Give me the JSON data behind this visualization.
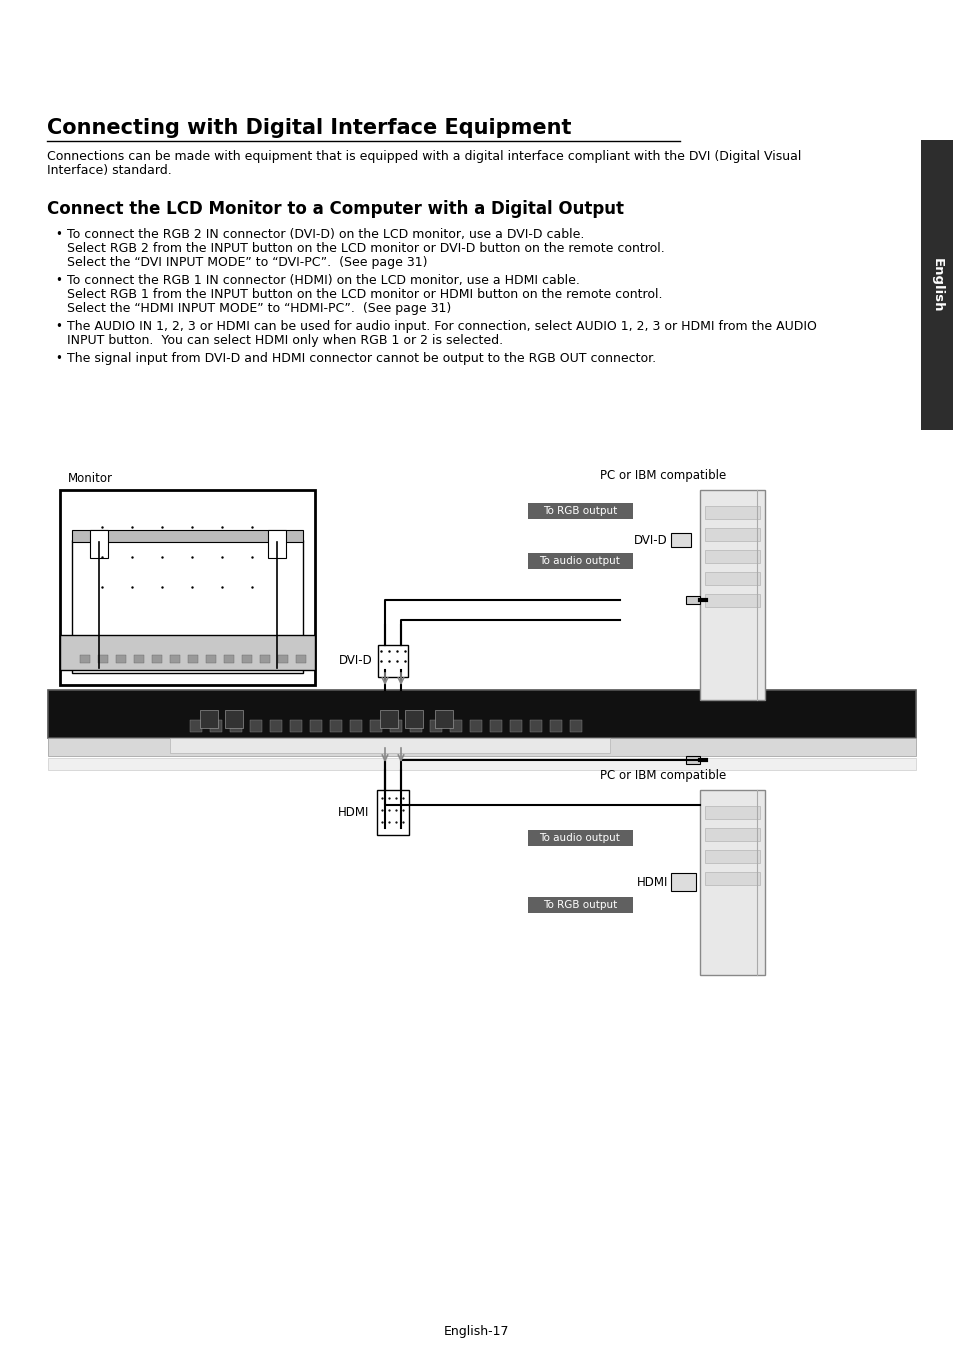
{
  "bg_color": "#ffffff",
  "title": "Connecting with Digital Interface Equipment",
  "subtitle_line1": "Connections can be made with equipment that is equipped with a digital interface compliant with the DVI (Digital Visual",
  "subtitle_line2": "Interface) standard.",
  "section_title": "Connect the LCD Monitor to a Computer with a Digital Output",
  "b1_l1": "To connect the RGB 2 IN connector (DVI-D) on the LCD monitor, use a DVI-D cable.",
  "b1_l2": "Select RGB 2 from the INPUT button on the LCD monitor or DVI-D button on the remote control.",
  "b1_l3": "Select the “DVI INPUT MODE” to “DVI-PC”.  (See page 31)",
  "b2_l1": "To connect the RGB 1 IN connector (HDMI) on the LCD monitor, use a HDMI cable.",
  "b2_l2": "Select RGB 1 from the INPUT button on the LCD monitor or HDMI button on the remote control.",
  "b2_l3": "Select the “HDMI INPUT MODE” to “HDMI-PC”.  (See page 31)",
  "b3_l1": "The AUDIO IN 1, 2, 3 or HDMI can be used for audio input. For connection, select AUDIO 1, 2, 3 or HDMI from the AUDIO",
  "b3_l2": "INPUT button.  You can select HDMI only when RGB 1 or 2 is selected.",
  "b4_l1": "The signal input from DVI-D and HDMI connector cannot be output to the RGB OUT connector.",
  "lbl_rgb_out": "To RGB output",
  "lbl_dvi_d": "DVI-D",
  "lbl_audio_out": "To audio output",
  "lbl_hdmi": "HDMI",
  "lbl_monitor": "Monitor",
  "lbl_pc1": "PC or IBM compatible",
  "lbl_pc2": "PC or IBM compatible",
  "lbl_rgb_out2": "To RGB output",
  "lbl_audio_out2": "To audio output",
  "lbl_hdmi2": "HDMI",
  "footer": "English-17",
  "sidebar_text": "English",
  "sidebar_bg": "#2d2d2d",
  "label_bg": "#606060",
  "label_fg": "#ffffff",
  "panel_bg": "#111111",
  "panel_strip_bg": "#d0d0d0",
  "pc_bg": "#e8e8e8",
  "pc_edge": "#888888",
  "monitor_frame_bg": "#ffffff",
  "monitor_base_bg": "#c0c0c0",
  "cable_color": "#000000",
  "arrow_color": "#888888",
  "title_fs": 15,
  "section_fs": 12,
  "body_fs": 9,
  "label_fs": 7.5,
  "small_fs": 8.5
}
